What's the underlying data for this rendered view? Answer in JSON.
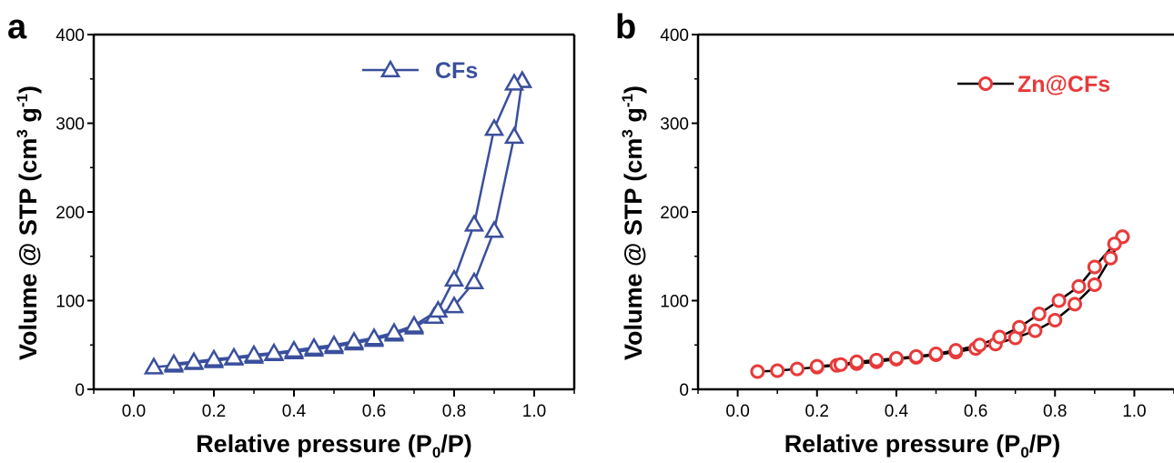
{
  "chart_data": [
    {
      "type": "line",
      "panel": "a",
      "xlabel": {
        "main": "Relative pressure (P",
        "sub": "0",
        "tail": "/P)"
      },
      "ylabel": {
        "main": "Volume @ STP (cm",
        "sup1": "3",
        "mid": " g",
        "sup2": "-1",
        "tail": ")"
      },
      "xlim": [
        -0.1,
        1.1
      ],
      "ylim": [
        0,
        400
      ],
      "x_ticks": [
        "0.0",
        "0.2",
        "0.4",
        "0.6",
        "0.8",
        "1.0"
      ],
      "x_tick_values": [
        0.0,
        0.2,
        0.4,
        0.6,
        0.8,
        1.0
      ],
      "y_ticks": [
        "0",
        "100",
        "200",
        "300",
        "400"
      ],
      "y_tick_values": [
        0,
        100,
        200,
        300,
        400
      ],
      "legend_position": "top-right",
      "marker": "triangle",
      "color": "#3a4f9c",
      "series": [
        {
          "name": "CFs",
          "adsorption": {
            "x": [
              0.05,
              0.1,
              0.15,
              0.2,
              0.25,
              0.3,
              0.35,
              0.4,
              0.45,
              0.5,
              0.55,
              0.6,
              0.65,
              0.7,
              0.75,
              0.8,
              0.85,
              0.9,
              0.95,
              0.97
            ],
            "y": [
              25,
              27,
              30,
              32,
              35,
              37,
              40,
              42,
              45,
              48,
              52,
              56,
              62,
              70,
              82,
              94,
              121,
              179,
              285,
              348
            ]
          },
          "desorption": {
            "x": [
              0.97,
              0.95,
              0.9,
              0.85,
              0.8,
              0.76,
              0.7,
              0.65,
              0.6,
              0.55,
              0.5,
              0.45,
              0.4,
              0.35,
              0.3,
              0.25,
              0.2,
              0.15,
              0.1
            ],
            "y": [
              348,
              345,
              294,
              186,
              124,
              89,
              72,
              64,
              58,
              54,
              50,
              47,
              44,
              41,
              39,
              36,
              34,
              31,
              29
            ]
          }
        }
      ]
    },
    {
      "type": "line",
      "panel": "b",
      "xlabel": {
        "main": "Relative pressure (P",
        "sub": "0",
        "tail": "/P)"
      },
      "ylabel": {
        "main": "Volume @ STP (cm",
        "sup1": "3",
        "mid": " g",
        "sup2": "-1",
        "tail": ")"
      },
      "xlim": [
        -0.1,
        1.1
      ],
      "ylim": [
        0,
        400
      ],
      "x_ticks": [
        "0.0",
        "0.2",
        "0.4",
        "0.6",
        "0.8",
        "1.0"
      ],
      "x_tick_values": [
        0.0,
        0.2,
        0.4,
        0.6,
        0.8,
        1.0
      ],
      "y_ticks": [
        "0",
        "100",
        "200",
        "300",
        "400"
      ],
      "y_tick_values": [
        0,
        100,
        200,
        300,
        400
      ],
      "legend_position": "top-right",
      "marker": "circle",
      "color": "#e83a3a",
      "line_color": "#000000",
      "series": [
        {
          "name": "Zn@CFs",
          "adsorption": {
            "x": [
              0.05,
              0.1,
              0.15,
              0.2,
              0.25,
              0.3,
              0.35,
              0.4,
              0.45,
              0.5,
              0.55,
              0.6,
              0.65,
              0.7,
              0.75,
              0.8,
              0.85,
              0.9,
              0.94,
              0.97
            ],
            "y": [
              20,
              21,
              23,
              25,
              27,
              29,
              31,
              34,
              36,
              39,
              42,
              46,
              51,
              58,
              66,
              78,
              96,
              118,
              148,
              172
            ]
          },
          "desorption": {
            "x": [
              0.97,
              0.95,
              0.9,
              0.86,
              0.81,
              0.76,
              0.71,
              0.66,
              0.61,
              0.55,
              0.5,
              0.45,
              0.4,
              0.35,
              0.3,
              0.26,
              0.2
            ],
            "y": [
              172,
              164,
              138,
              116,
              100,
              85,
              70,
              59,
              50,
              44,
              40,
              37,
              35,
              33,
              31,
              28,
              26
            ]
          }
        }
      ]
    }
  ]
}
